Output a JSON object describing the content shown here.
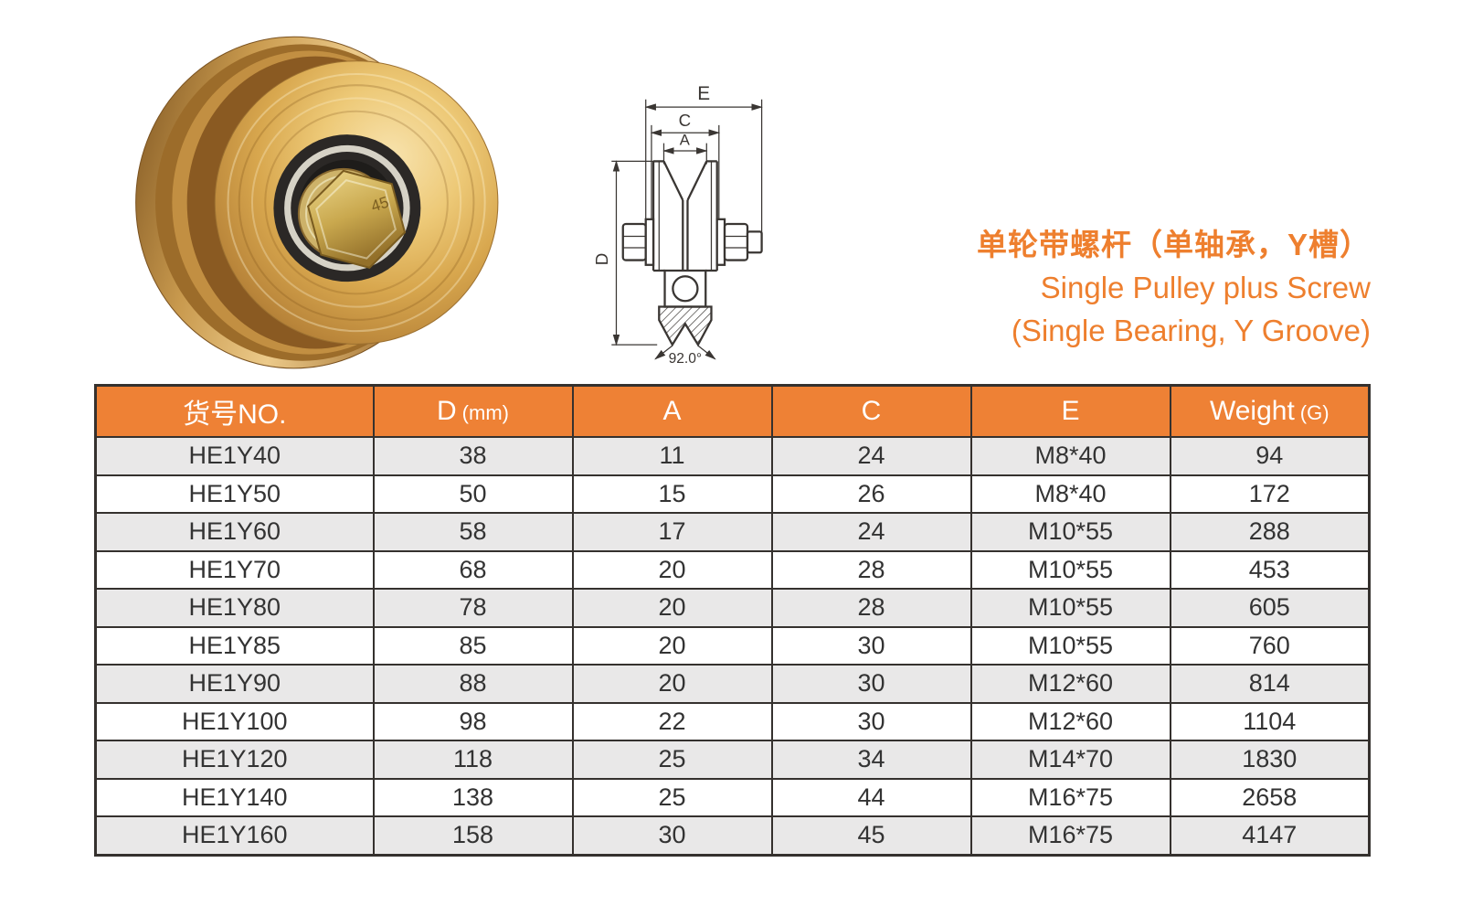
{
  "title": {
    "cn": "单轮带螺杆（单轴承，Y槽）",
    "en_line1": "Single Pulley plus Screw",
    "en_line2": "(Single Bearing, Y Groove)"
  },
  "photo": {
    "bolt_stamp": "45"
  },
  "diagram": {
    "labels": {
      "e": "E",
      "c": "C",
      "a": "A",
      "d": "D",
      "angle": "92.0°"
    }
  },
  "table": {
    "col_keys": [
      "model",
      "d_mm",
      "a",
      "c",
      "e",
      "weight_g"
    ],
    "headers": [
      {
        "main": "货号NO.",
        "sub": ""
      },
      {
        "main": "D",
        "sub": "(mm)"
      },
      {
        "main": "A",
        "sub": ""
      },
      {
        "main": "C",
        "sub": ""
      },
      {
        "main": "E",
        "sub": ""
      },
      {
        "main": "Weight",
        "sub": "(G)"
      }
    ],
    "rows": [
      [
        "HE1Y40",
        "38",
        "11",
        "24",
        "M8*40",
        "94"
      ],
      [
        "HE1Y50",
        "50",
        "15",
        "26",
        "M8*40",
        "172"
      ],
      [
        "HE1Y60",
        "58",
        "17",
        "24",
        "M10*55",
        "288"
      ],
      [
        "HE1Y70",
        "68",
        "20",
        "28",
        "M10*55",
        "453"
      ],
      [
        "HE1Y80",
        "78",
        "20",
        "28",
        "M10*55",
        "605"
      ],
      [
        "HE1Y85",
        "85",
        "20",
        "30",
        "M10*55",
        "760"
      ],
      [
        "HE1Y90",
        "88",
        "20",
        "30",
        "M12*60",
        "814"
      ],
      [
        "HE1Y100",
        "98",
        "22",
        "30",
        "M12*60",
        "1104"
      ],
      [
        "HE1Y120",
        "118",
        "25",
        "34",
        "M14*70",
        "1830"
      ],
      [
        "HE1Y140",
        "138",
        "25",
        "44",
        "M16*75",
        "2658"
      ],
      [
        "HE1Y160",
        "158",
        "30",
        "45",
        "M16*75",
        "4147"
      ]
    ]
  },
  "colors": {
    "accent_orange_text": "#EE7F2E",
    "table_header_bg": "#EE8135",
    "table_header_text": "#FFFFFF",
    "row_alt_gray": "#E9E8E8",
    "row_white": "#FFFFFF",
    "table_border": "#35312E",
    "cell_text": "#333333"
  }
}
